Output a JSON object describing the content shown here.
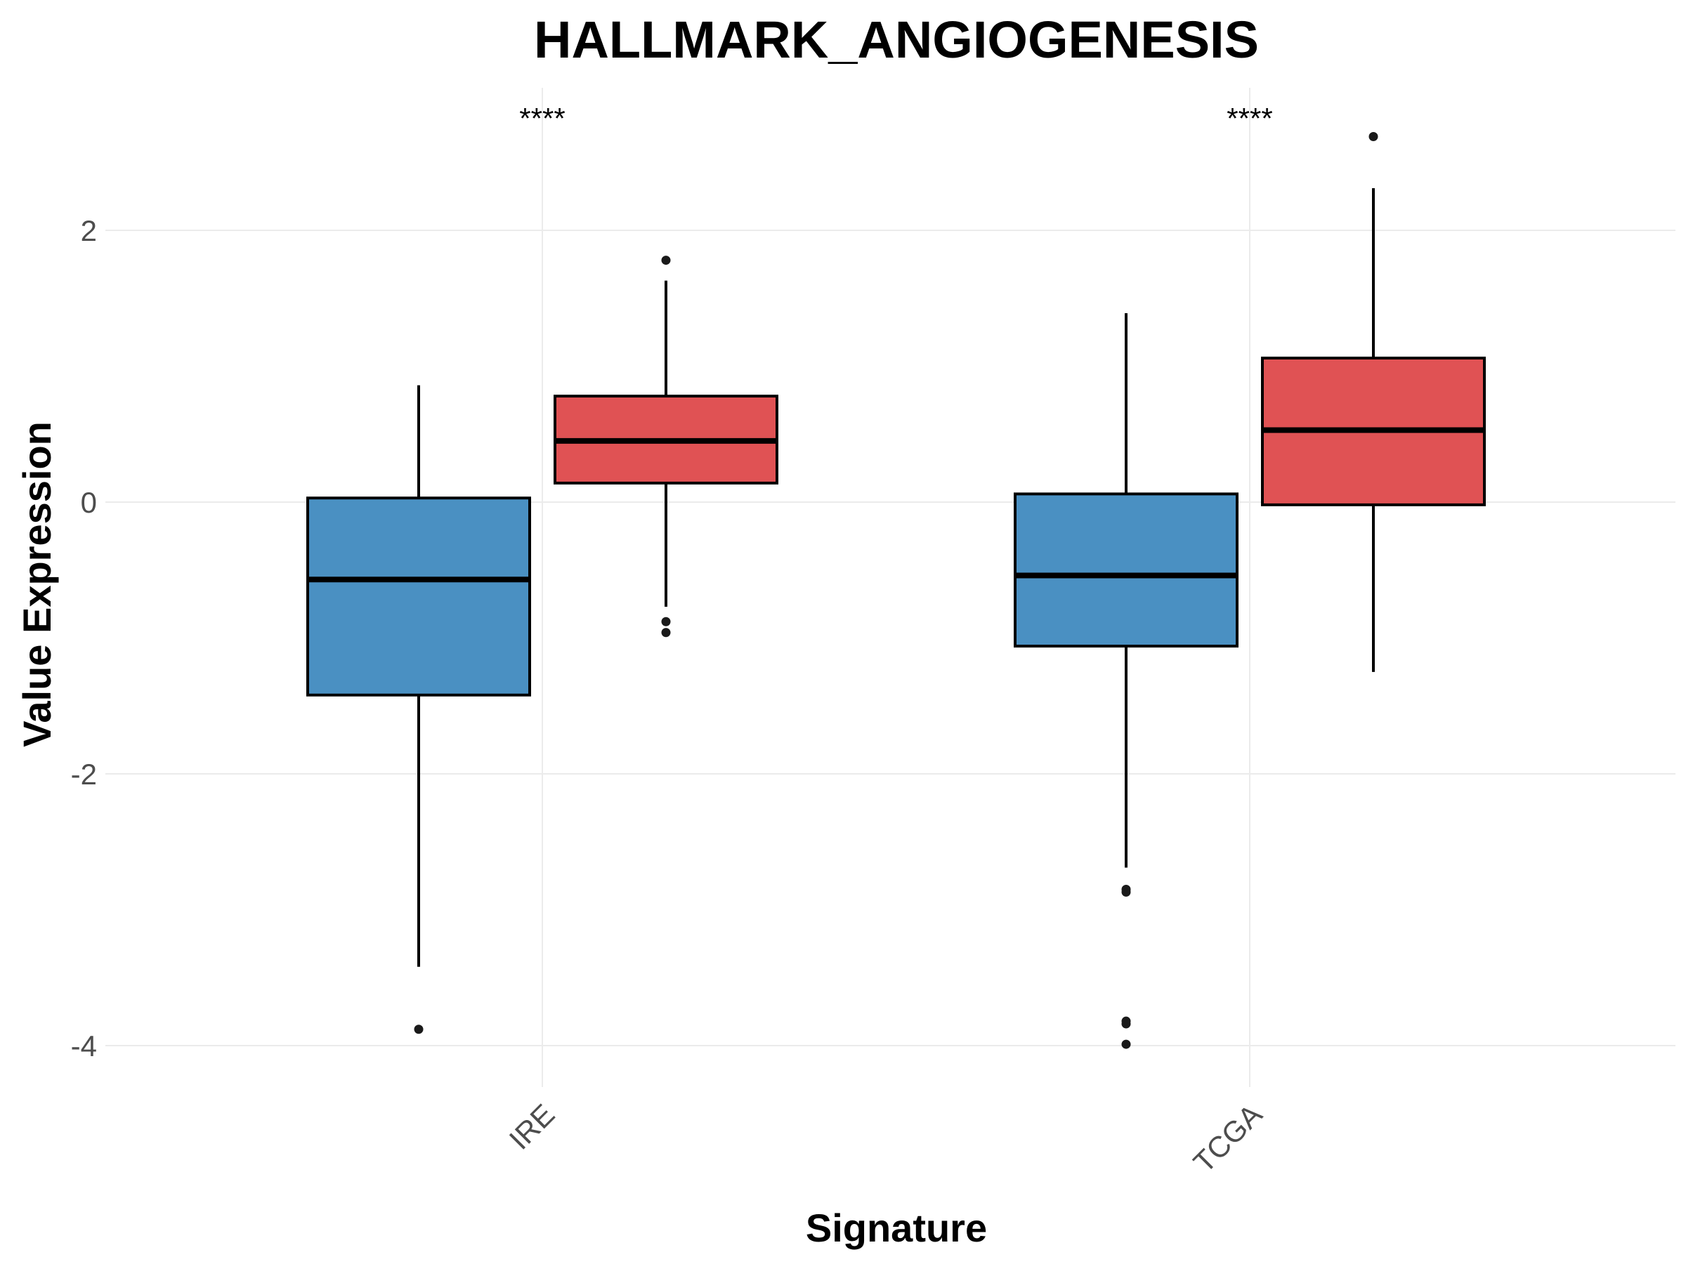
{
  "chart_data": {
    "type": "box",
    "title": "HALLMARK_ANGIOGENESIS",
    "xlabel": "Signature",
    "ylabel": "Value Expression",
    "categories": [
      "IRE",
      "TCGA"
    ],
    "ylim": [
      -4.3,
      3.05
    ],
    "yticks": [
      -4,
      -2,
      0,
      2
    ],
    "yticklabels": [
      "-4",
      "-2",
      "0",
      "2"
    ],
    "grid": true,
    "legend": "none",
    "significance": [
      "****",
      "****"
    ],
    "series": [
      {
        "color": "#4a90c2",
        "boxes": [
          {
            "category": "IRE",
            "whisker_low": -3.42,
            "q1": -1.42,
            "median": -0.57,
            "q3": 0.03,
            "whisker_high": 0.86,
            "outliers": [
              -3.88
            ]
          },
          {
            "category": "TCGA",
            "whisker_low": -2.69,
            "q1": -1.06,
            "median": -0.54,
            "q3": 0.06,
            "whisker_high": 1.39,
            "outliers": [
              -2.85,
              -2.87,
              -3.82,
              -3.84,
              -3.99
            ]
          }
        ]
      },
      {
        "color": "#e05254",
        "boxes": [
          {
            "category": "IRE",
            "whisker_low": -0.77,
            "q1": 0.14,
            "median": 0.45,
            "q3": 0.78,
            "whisker_high": 1.63,
            "outliers": [
              1.78,
              -0.88,
              -0.96
            ]
          },
          {
            "category": "TCGA",
            "whisker_low": -1.25,
            "q1": -0.02,
            "median": 0.53,
            "q3": 1.06,
            "whisker_high": 2.31,
            "outliers": [
              2.69
            ]
          }
        ]
      }
    ]
  }
}
